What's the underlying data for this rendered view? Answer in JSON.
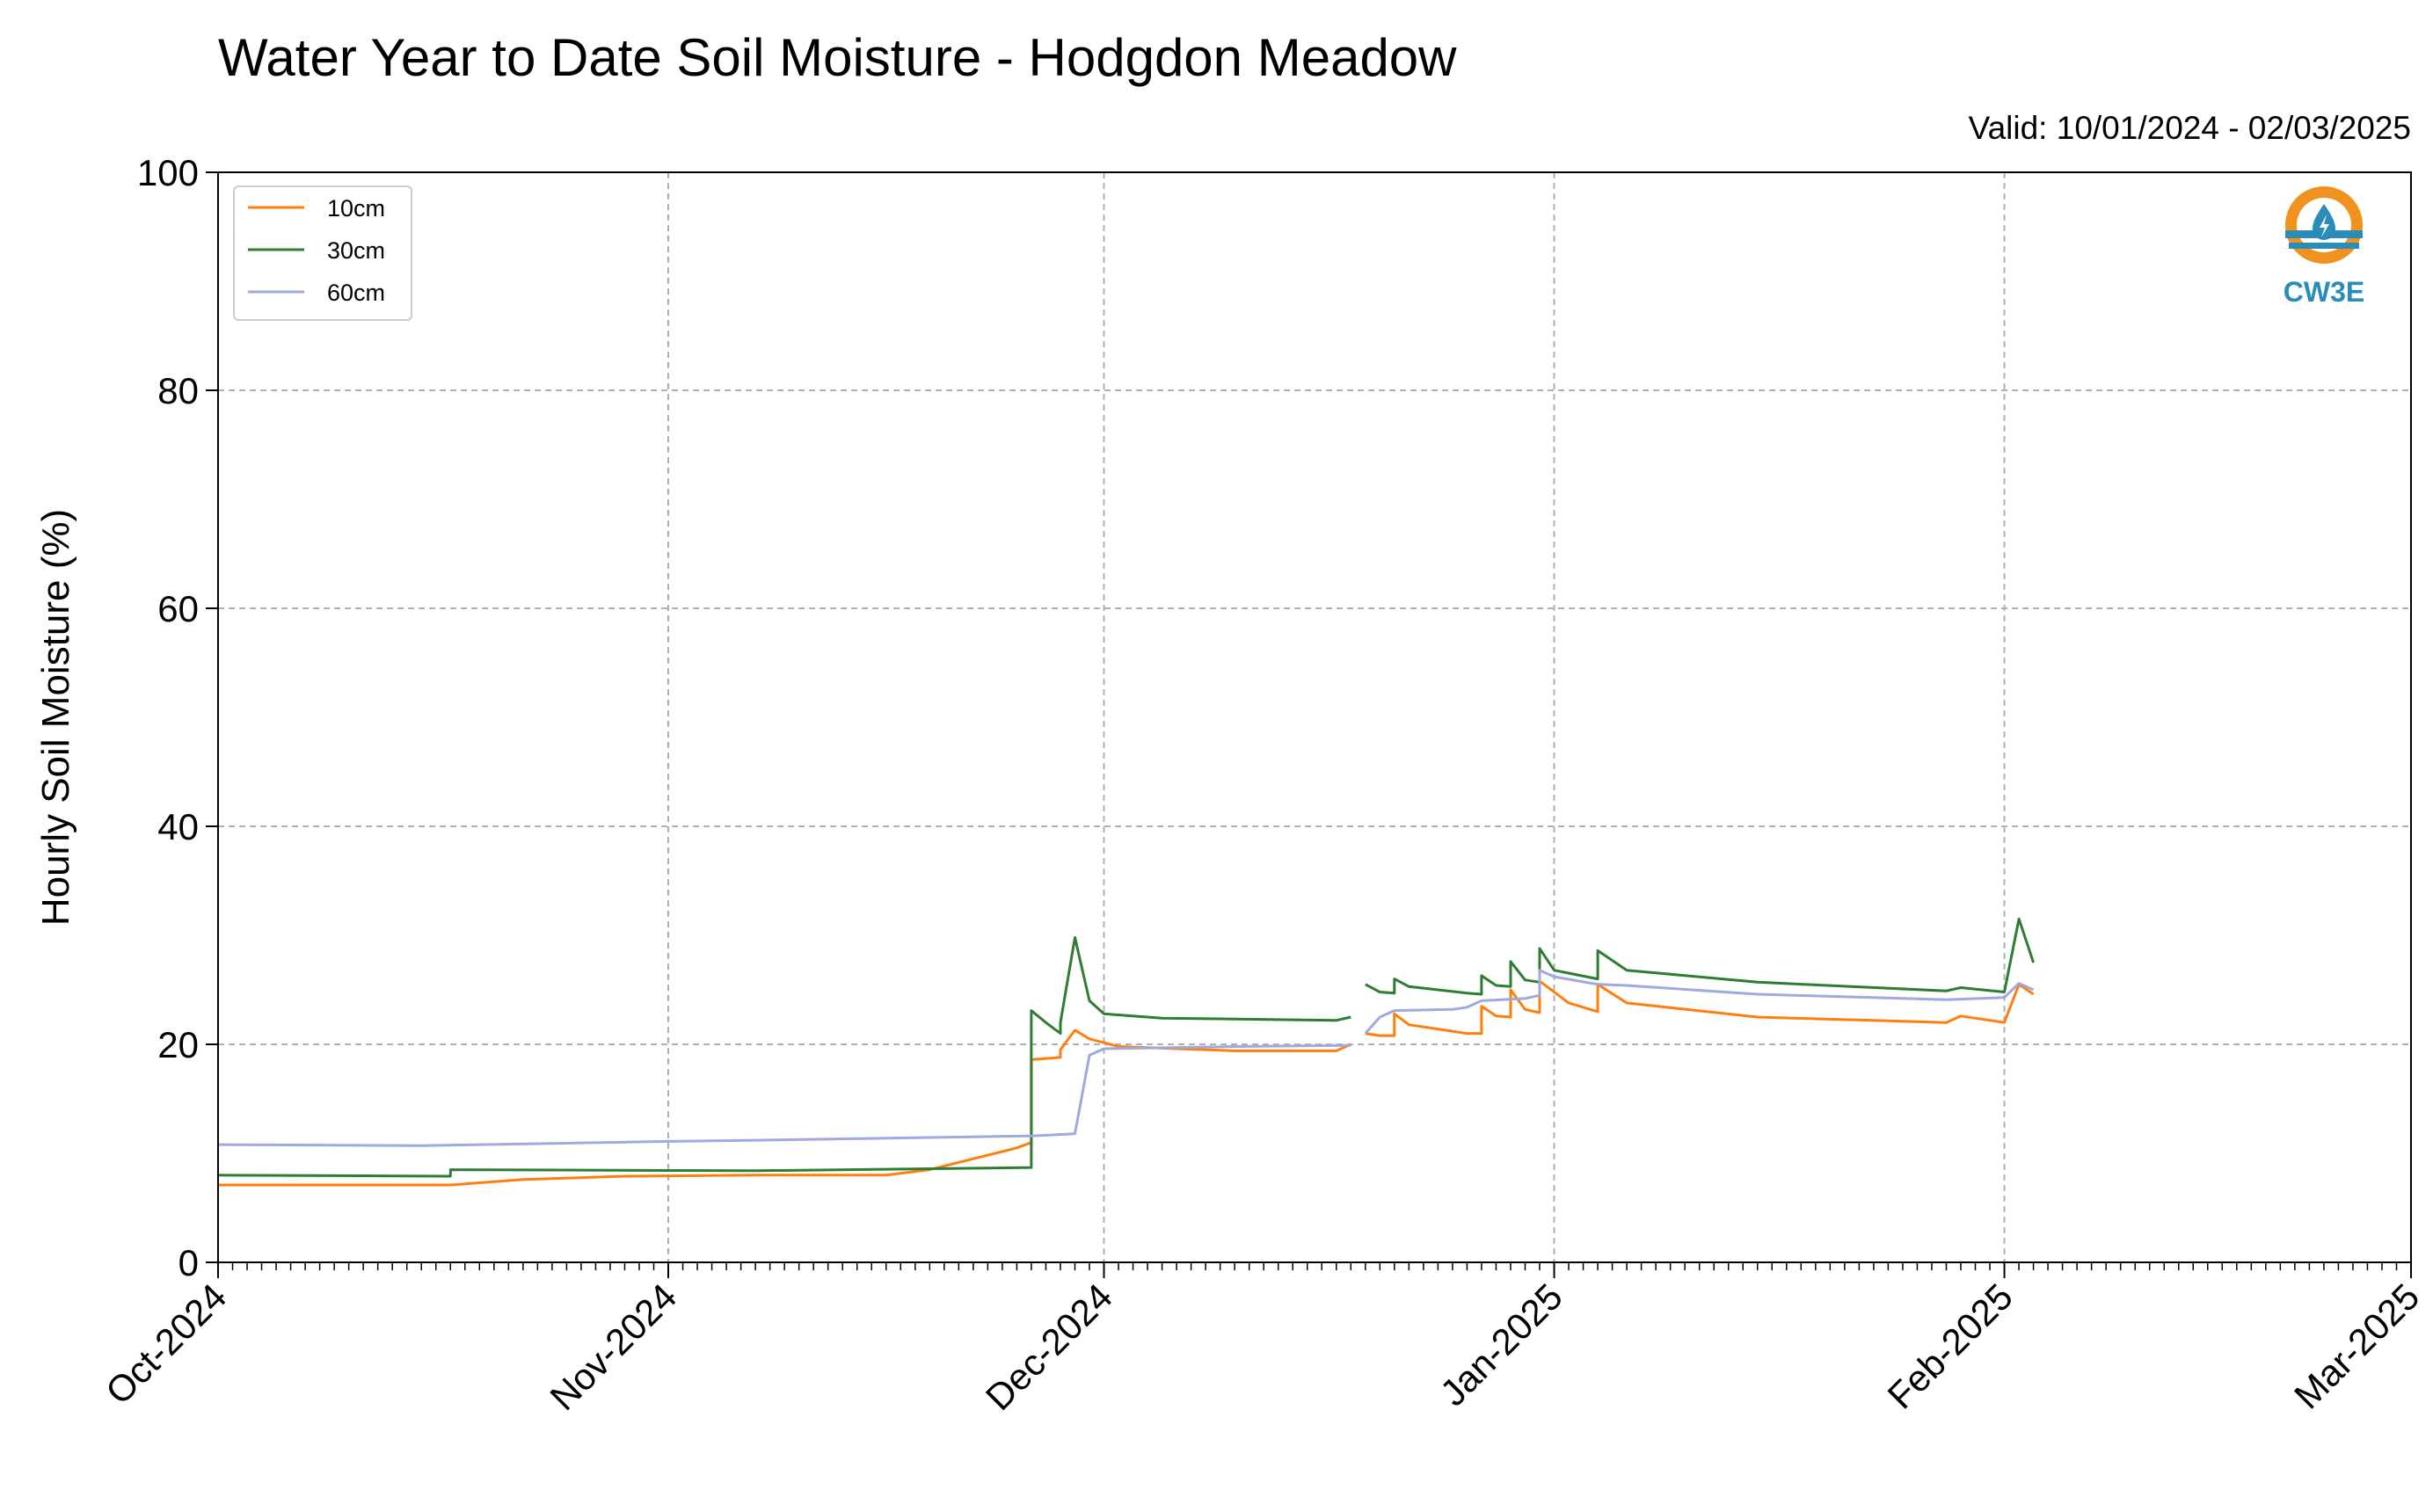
{
  "chart_data": {
    "type": "line",
    "title": "Water Year to Date Soil Moisture - Hodgdon Meadow",
    "subtitle": "Valid: 10/01/2024 - 02/03/2025",
    "xlabel": "",
    "ylabel": "Hourly Soil Moisture (%)",
    "ylim": [
      0,
      100
    ],
    "yticks": [
      "0",
      "20",
      "40",
      "60",
      "80",
      "100"
    ],
    "xlim": [
      "2024-10-01",
      "2025-03-01"
    ],
    "xticks": [
      {
        "date": "2024-10-01",
        "label": "Oct-2024"
      },
      {
        "date": "2024-11-01",
        "label": "Nov-2024"
      },
      {
        "date": "2024-12-01",
        "label": "Dec-2024"
      },
      {
        "date": "2025-01-01",
        "label": "Jan-2025"
      },
      {
        "date": "2025-02-01",
        "label": "Feb-2025"
      },
      {
        "date": "2025-03-01",
        "label": "Mar-2025"
      }
    ],
    "grid": true,
    "legend_position": "top-left",
    "series": [
      {
        "name": "10cm",
        "color": "#ff7f0e",
        "segments": [
          [
            [
              "2024-10-01",
              7.1
            ],
            [
              "2024-10-17",
              7.1
            ],
            [
              "2024-10-22",
              7.6
            ],
            [
              "2024-10-29",
              7.9
            ],
            [
              "2024-11-07",
              8.0
            ]
          ],
          [
            [
              "2024-11-07",
              8.0
            ],
            [
              "2024-11-16",
              8.0
            ],
            [
              "2024-11-19",
              8.5
            ],
            [
              "2024-11-22",
              9.5
            ],
            [
              "2024-11-25",
              10.5
            ],
            [
              "2024-11-26",
              11.0
            ],
            [
              "2024-11-26",
              17.5
            ],
            [
              "2024-11-26",
              18.6
            ],
            [
              "2024-11-27",
              18.7
            ],
            [
              "2024-11-28",
              18.8
            ],
            [
              "2024-11-28",
              19.5
            ],
            [
              "2024-11-29",
              21.3
            ],
            [
              "2024-11-30",
              20.5
            ],
            [
              "2024-12-02",
              19.8
            ],
            [
              "2024-12-10",
              19.4
            ],
            [
              "2024-12-17",
              19.4
            ],
            [
              "2024-12-18",
              20.0
            ]
          ],
          [
            [
              "2024-12-19",
              21.0
            ],
            [
              "2024-12-20",
              20.8
            ],
            [
              "2024-12-21",
              20.8
            ],
            [
              "2024-12-21",
              22.8
            ],
            [
              "2024-12-22",
              21.8
            ],
            [
              "2024-12-26",
              21.0
            ],
            [
              "2024-12-27",
              21.0
            ],
            [
              "2024-12-27",
              23.5
            ],
            [
              "2024-12-28",
              22.6
            ],
            [
              "2024-12-29",
              22.5
            ],
            [
              "2024-12-29",
              25.0
            ],
            [
              "2024-12-30",
              23.2
            ],
            [
              "2024-12-31",
              22.9
            ],
            [
              "2024-12-31",
              25.8
            ],
            [
              "2025-01-02",
              23.8
            ],
            [
              "2025-01-04",
              23.0
            ],
            [
              "2025-01-04",
              25.5
            ],
            [
              "2025-01-06",
              23.8
            ],
            [
              "2025-01-15",
              22.5
            ],
            [
              "2025-01-28",
              22.0
            ],
            [
              "2025-01-29",
              22.6
            ],
            [
              "2025-02-01",
              22.0
            ],
            [
              "2025-02-02",
              25.5
            ],
            [
              "2025-02-03",
              24.6
            ]
          ]
        ]
      },
      {
        "name": "30cm",
        "color": "#2e7d32",
        "segments": [
          [
            [
              "2024-10-01",
              8.0
            ],
            [
              "2024-10-17",
              7.9
            ],
            [
              "2024-10-17",
              8.5
            ],
            [
              "2024-11-07",
              8.4
            ]
          ],
          [
            [
              "2024-11-07",
              8.4
            ],
            [
              "2024-11-26",
              8.7
            ],
            [
              "2024-11-26",
              23.1
            ],
            [
              "2024-11-27",
              22.0
            ],
            [
              "2024-11-28",
              21.0
            ],
            [
              "2024-11-28",
              22.0
            ],
            [
              "2024-11-29",
              29.8
            ],
            [
              "2024-11-30",
              24.0
            ],
            [
              "2024-12-01",
              22.8
            ],
            [
              "2024-12-05",
              22.4
            ],
            [
              "2024-12-17",
              22.2
            ],
            [
              "2024-12-18",
              22.5
            ]
          ],
          [
            [
              "2024-12-19",
              25.5
            ],
            [
              "2024-12-20",
              24.8
            ],
            [
              "2024-12-21",
              24.7
            ],
            [
              "2024-12-21",
              26.0
            ],
            [
              "2024-12-22",
              25.3
            ],
            [
              "2024-12-26",
              24.7
            ],
            [
              "2024-12-27",
              24.6
            ],
            [
              "2024-12-27",
              26.3
            ],
            [
              "2024-12-28",
              25.4
            ],
            [
              "2024-12-29",
              25.3
            ],
            [
              "2024-12-29",
              27.6
            ],
            [
              "2024-12-30",
              25.9
            ],
            [
              "2024-12-31",
              25.7
            ],
            [
              "2024-12-31",
              28.8
            ],
            [
              "2025-01-01",
              26.8
            ],
            [
              "2025-01-04",
              26.0
            ],
            [
              "2025-01-04",
              28.6
            ],
            [
              "2025-01-06",
              26.8
            ],
            [
              "2025-01-15",
              25.7
            ],
            [
              "2025-01-28",
              24.9
            ],
            [
              "2025-01-29",
              25.2
            ],
            [
              "2025-02-01",
              24.8
            ],
            [
              "2025-02-02",
              31.5
            ],
            [
              "2025-02-03",
              27.5
            ]
          ]
        ]
      },
      {
        "name": "60cm",
        "color": "#a0a8e0",
        "segments": [
          [
            [
              "2024-10-01",
              10.8
            ],
            [
              "2024-10-15",
              10.7
            ],
            [
              "2024-11-01",
              11.1
            ],
            [
              "2024-11-07",
              11.2
            ]
          ],
          [
            [
              "2024-11-07",
              11.2
            ],
            [
              "2024-11-26",
              11.6
            ],
            [
              "2024-11-29",
              11.8
            ],
            [
              "2024-11-30",
              19.0
            ],
            [
              "2024-12-01",
              19.6
            ],
            [
              "2024-12-10",
              19.8
            ],
            [
              "2024-12-18",
              19.9
            ]
          ],
          [
            [
              "2024-12-19",
              21.0
            ],
            [
              "2024-12-20",
              22.5
            ],
            [
              "2024-12-21",
              23.1
            ],
            [
              "2024-12-25",
              23.2
            ],
            [
              "2024-12-26",
              23.4
            ],
            [
              "2024-12-27",
              24.0
            ],
            [
              "2024-12-30",
              24.2
            ],
            [
              "2024-12-31",
              24.5
            ],
            [
              "2024-12-31",
              26.8
            ],
            [
              "2025-01-01",
              26.2
            ],
            [
              "2025-01-04",
              25.5
            ],
            [
              "2025-01-06",
              25.4
            ],
            [
              "2025-01-15",
              24.6
            ],
            [
              "2025-01-28",
              24.1
            ],
            [
              "2025-02-01",
              24.3
            ],
            [
              "2025-02-02",
              25.6
            ],
            [
              "2025-02-03",
              25.0
            ]
          ]
        ]
      }
    ]
  },
  "logo": {
    "text": "CW3E",
    "colors": {
      "ring": "#f0921e",
      "wave": "#2a8db8"
    }
  }
}
